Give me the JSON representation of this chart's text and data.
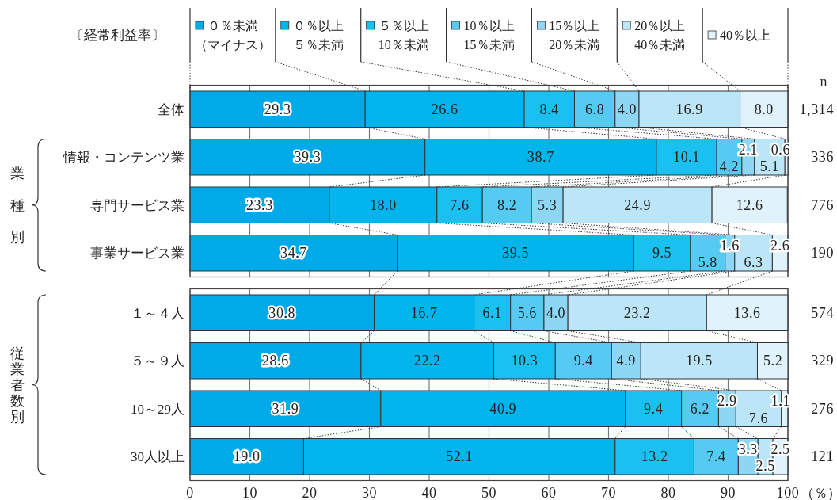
{
  "chart_data": {
    "type": "bar",
    "orientation": "horizontal",
    "stacked": true,
    "legend_title": "〔経常利益率〕",
    "xlabel": "（％）",
    "categories": [
      "全体",
      "情報・コンテンツ業",
      "専門サービス業",
      "事業サービス業",
      "１～４人",
      "５～９人",
      "10～29人",
      "30人以上"
    ],
    "series": [
      {
        "name": "０％未満（マイナス）",
        "color": "#00aae8",
        "values": [
          29.3,
          39.3,
          23.3,
          34.7,
          30.8,
          28.6,
          31.9,
          19.0
        ],
        "value_labels": [
          "29.3",
          "39.3",
          "23.3",
          "34.7",
          "30.8",
          "28.6",
          "31.9",
          "19.0"
        ]
      },
      {
        "name": "０％以上５％未満",
        "color": "#00b4ec",
        "values": [
          26.6,
          38.7,
          18.0,
          39.5,
          16.7,
          22.2,
          40.9,
          52.1
        ],
        "value_labels": [
          "26.6",
          "38.7",
          "18.0",
          "39.5",
          "16.7",
          "22.2",
          "40.9",
          "52.1"
        ]
      },
      {
        "name": "５％以上10％未満",
        "color": "#1ac0f0",
        "values": [
          8.4,
          10.1,
          7.6,
          9.5,
          6.1,
          10.3,
          9.4,
          13.2
        ],
        "value_labels": [
          "8.4",
          "10.1",
          "7.6",
          "9.5",
          "6.1",
          "10.3",
          "9.4",
          "13.2"
        ]
      },
      {
        "name": "10％以上15％未満",
        "color": "#55cbf3",
        "values": [
          6.8,
          4.2,
          8.2,
          5.8,
          5.6,
          9.4,
          6.2,
          7.4
        ],
        "value_labels": [
          "6.8",
          "4.2",
          "8.2",
          "5.8",
          "5.6",
          "9.4",
          "6.2",
          "7.4"
        ]
      },
      {
        "name": "15％以上20％未満",
        "color": "#8dd7f5",
        "values": [
          4.0,
          2.1,
          5.3,
          1.6,
          4.0,
          4.9,
          2.9,
          3.3
        ],
        "value_labels": [
          "4.0",
          "2.1",
          "5.3",
          "1.6",
          "4.0",
          "4.9",
          "2.9",
          "3.3"
        ]
      },
      {
        "name": "20％以上40％未満",
        "color": "#bce6f8",
        "values": [
          16.9,
          5.1,
          24.9,
          6.3,
          23.2,
          19.5,
          7.6,
          2.5
        ],
        "value_labels": [
          "16.9",
          "5.1",
          "24.9",
          "6.3",
          "23.2",
          "19.5",
          "7.6",
          "2.5"
        ]
      },
      {
        "name": "40％以上",
        "color": "#e0f3fc",
        "values": [
          8.0,
          0.6,
          12.6,
          2.6,
          13.6,
          5.2,
          1.1,
          2.5
        ],
        "value_labels": [
          "8.0",
          "0.6",
          "12.6",
          "2.6",
          "13.6",
          "5.2",
          "1.1",
          "2.5"
        ]
      }
    ],
    "xlim": [
      0,
      100
    ],
    "xticks": [
      0,
      10,
      20,
      30,
      40,
      50,
      60,
      70,
      80,
      90,
      100
    ],
    "grid": "x",
    "legend": "top",
    "annotations": [
      "業種別",
      "従業者数別",
      "n",
      "1,314",
      "336",
      "776",
      "190",
      "574",
      "329",
      "276",
      "121"
    ]
  }
}
